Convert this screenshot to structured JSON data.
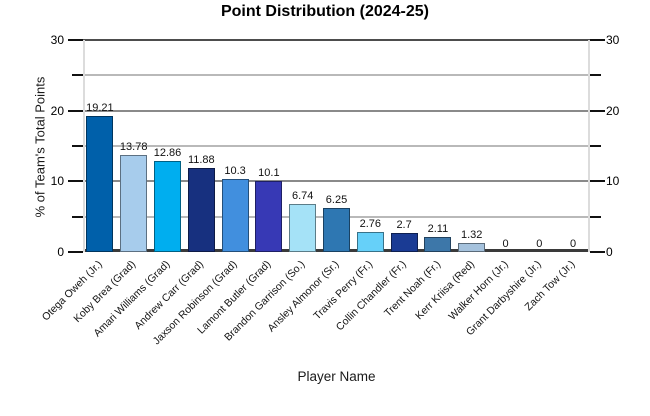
{
  "chart": {
    "title": "Point Distribution (2024-25)",
    "x_axis_title": "Player Name",
    "y_axis_title": "% of Team's Total Points"
  },
  "chart_data": {
    "type": "bar",
    "title": "Point Distribution (2024-25)",
    "xlabel": "Player Name",
    "ylabel": "% of Team's Total Points",
    "ylim": [
      0,
      30
    ],
    "ytick_major": [
      0,
      10,
      20,
      30
    ],
    "ytick_minor": [
      5,
      15,
      25
    ],
    "grid": true,
    "legend": "none",
    "categories": [
      "Otega Oweh (Jr.)",
      "Koby Brea (Grad)",
      "Amari Williams (Grad)",
      "Andrew Carr (Grad)",
      "Jaxson Robinson (Grad)",
      "Lamont Butler (Grad)",
      "Brandon Garrison (So.)",
      "Ansley Almonor (Sr.)",
      "Travis Perry (Fr.)",
      "Collin Chandler (Fr.)",
      "Trent Noah (Fr.)",
      "Kerr Kriisa (Red)",
      "Walker Horn (Jr.)",
      "Grant Darbyshire (Jr.)",
      "Zach Tow (Jr.)"
    ],
    "values": [
      19.21,
      13.78,
      12.86,
      11.88,
      10.3,
      10.1,
      6.74,
      6.25,
      2.76,
      2.7,
      2.11,
      1.32,
      0,
      0,
      0
    ],
    "value_labels": [
      "19.21",
      "13.78",
      "12.86",
      "11.88",
      "10.3",
      "10.1",
      "6.74",
      "6.25",
      "2.76",
      "2.7",
      "2.11",
      "1.32",
      "0",
      "0",
      "0"
    ],
    "bar_colors": [
      "#0060AA",
      "#A7CCEC",
      "#00AEEF",
      "#17307F",
      "#418FDE",
      "#3739B5",
      "#A5E2F7",
      "#2E77B2",
      "#66D0F9",
      "#1A3B94",
      "#3D77A9",
      "#A5C2DD",
      null,
      null,
      null
    ],
    "colors": {
      "grid_major": "#8a8a8a",
      "grid_minor": "#b9b9b9",
      "grid_top": "#4d4d4d",
      "axis_baseline": "#3a3a3a",
      "tick": "#111111",
      "text": "#000000",
      "background": "#ffffff"
    }
  }
}
